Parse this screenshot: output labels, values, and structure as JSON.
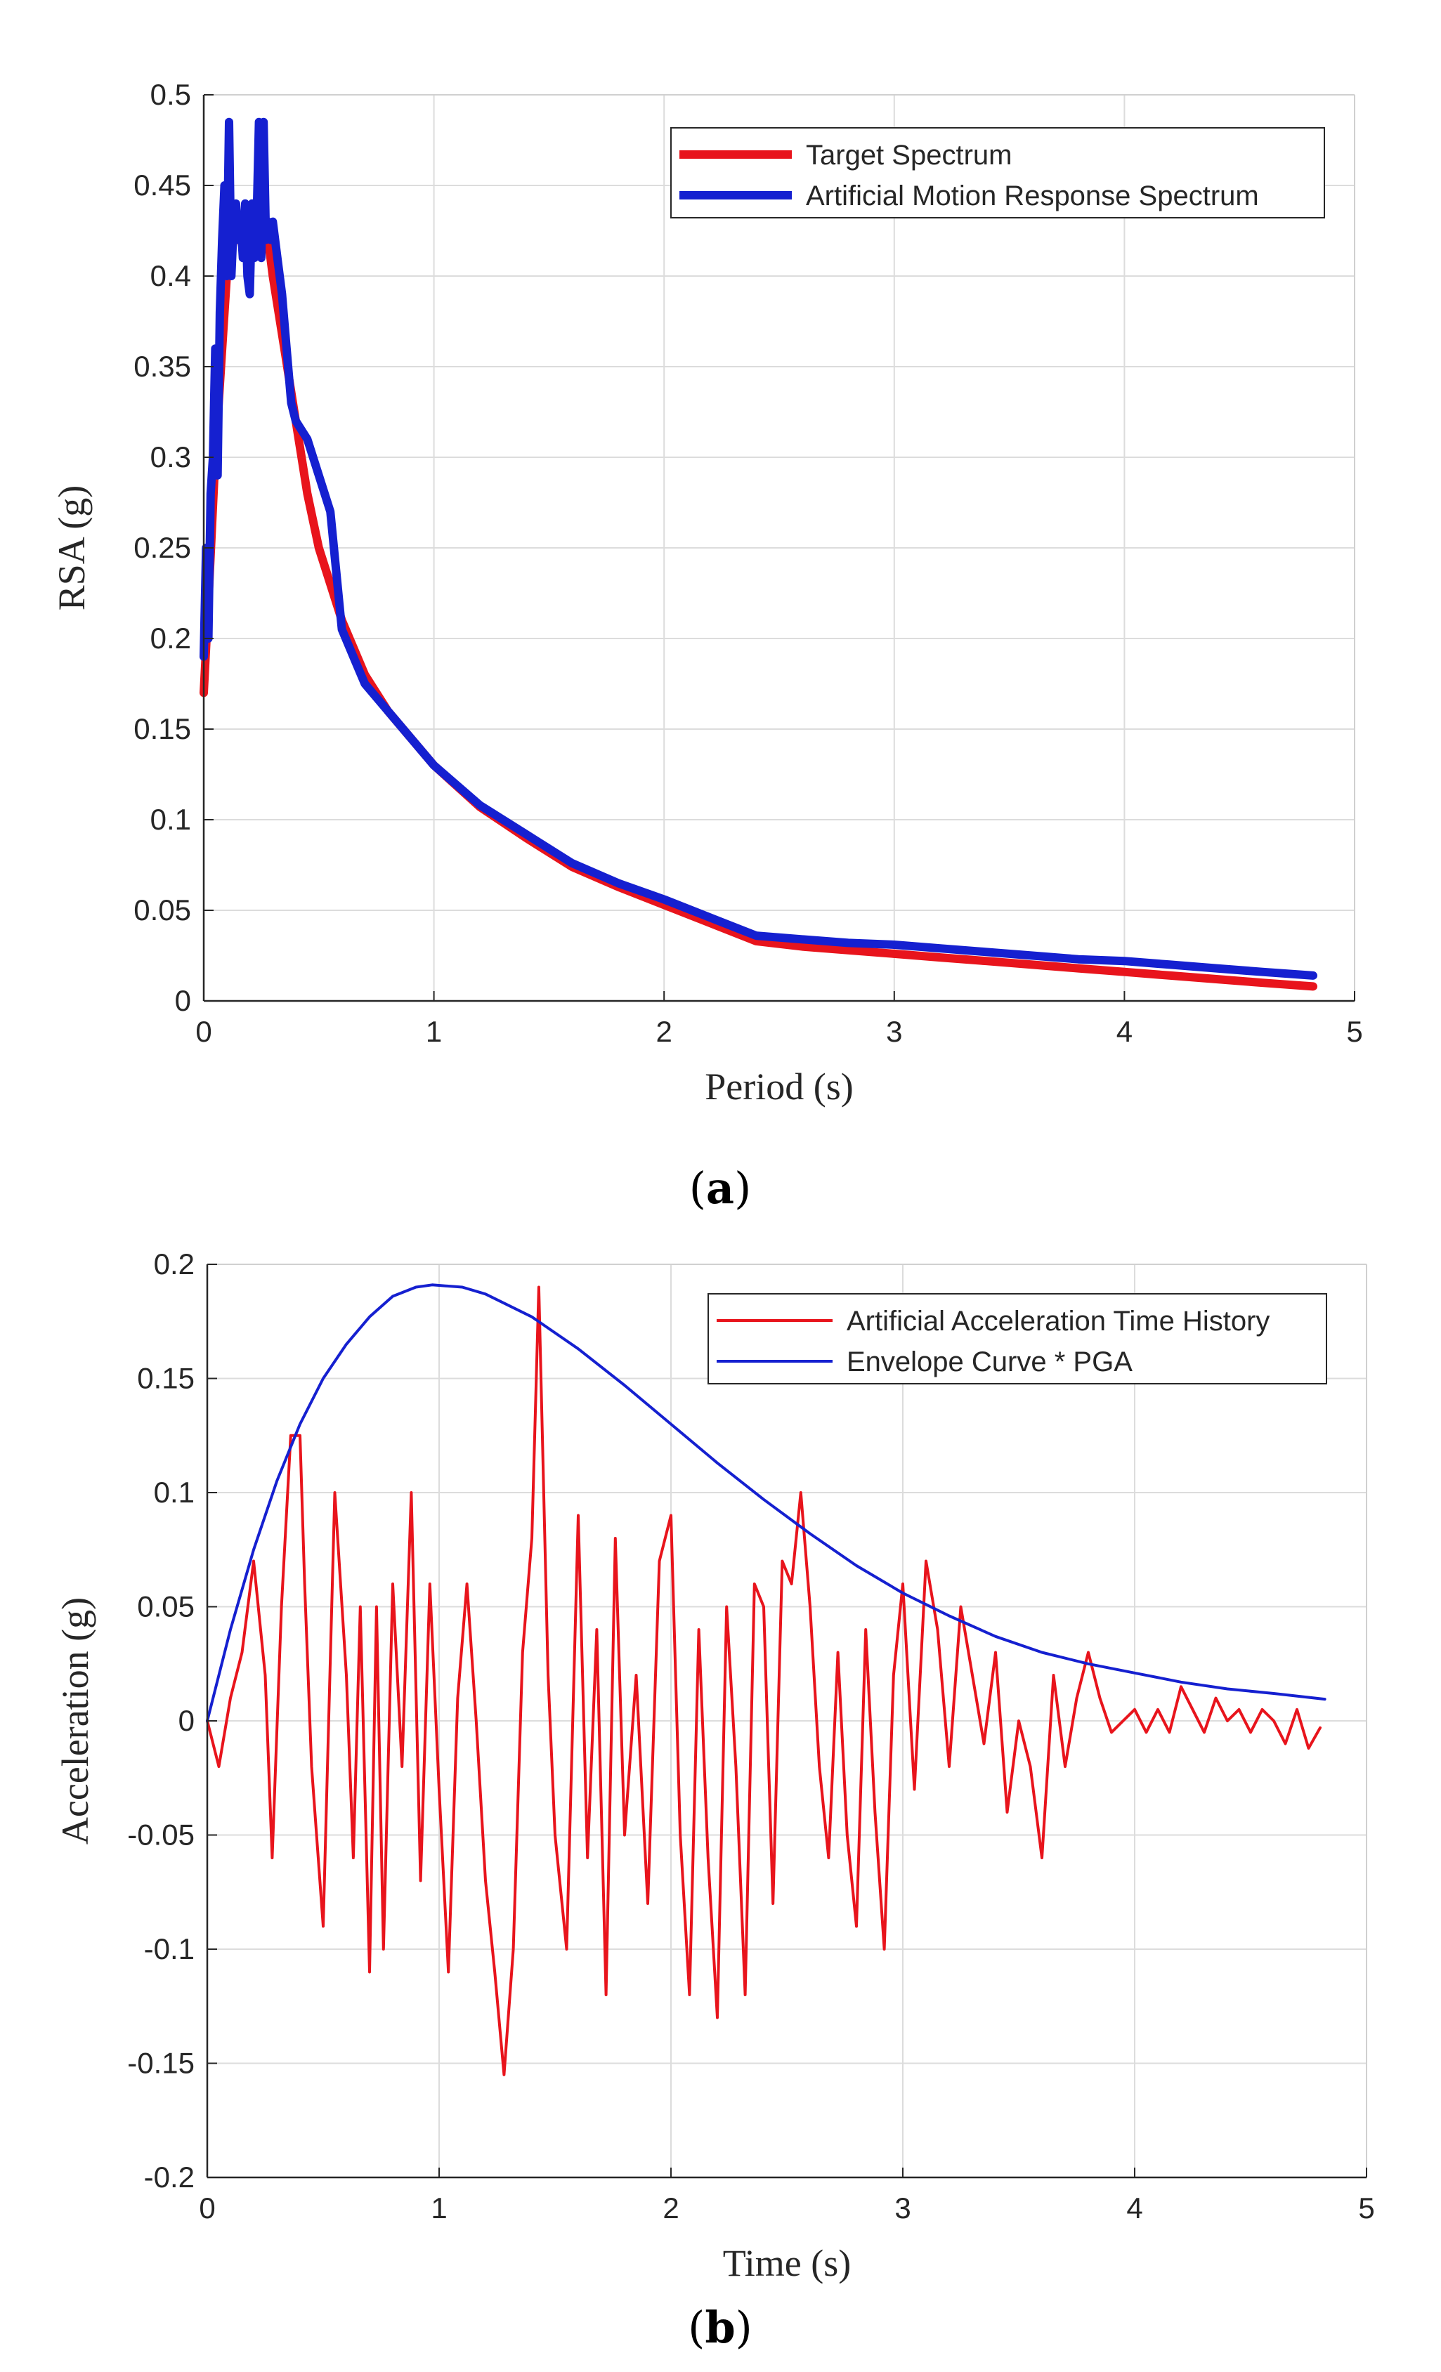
{
  "captions": {
    "a": "a",
    "b": "b",
    "open": "(",
    "close": ")"
  },
  "chart_data": [
    {
      "id": "a",
      "type": "line",
      "title": "",
      "xlabel": "Period (s)",
      "ylabel": "RSA (g)",
      "xlim": [
        0,
        5
      ],
      "ylim": [
        0,
        0.5
      ],
      "xticks": [
        0,
        1,
        2,
        3,
        4,
        5
      ],
      "xtick_labels": [
        "0",
        "1",
        "2",
        "3",
        "4",
        "5"
      ],
      "yticks": [
        0,
        0.05,
        0.1,
        0.15,
        0.2,
        0.25,
        0.3,
        0.35,
        0.4,
        0.45,
        0.5
      ],
      "ytick_labels": [
        "0",
        "0.05",
        "0.1",
        "0.15",
        "0.2",
        "0.25",
        "0.3",
        "0.35",
        "0.4",
        "0.45",
        "0.5"
      ],
      "grid": true,
      "legend": "top-right",
      "series": [
        {
          "name": "Target Spectrum",
          "color": "#e8141c",
          "x": [
            0,
            0.02,
            0.05,
            0.08,
            0.1,
            0.13,
            0.16,
            0.2,
            0.24,
            0.28,
            0.3,
            0.35,
            0.4,
            0.45,
            0.5,
            0.55,
            0.6,
            0.7,
            0.8,
            0.9,
            1.0,
            1.2,
            1.4,
            1.6,
            1.8,
            2.0,
            2.2,
            2.4,
            2.6,
            2.8,
            3.0,
            3.2,
            3.4,
            3.6,
            3.8,
            4.0,
            4.2,
            4.4,
            4.6,
            4.82
          ],
          "y": [
            0.17,
            0.22,
            0.3,
            0.36,
            0.4,
            0.42,
            0.42,
            0.42,
            0.42,
            0.42,
            0.4,
            0.36,
            0.32,
            0.28,
            0.25,
            0.23,
            0.21,
            0.18,
            0.16,
            0.145,
            0.13,
            0.107,
            0.09,
            0.074,
            0.063,
            0.053,
            0.043,
            0.033,
            0.03,
            0.028,
            0.026,
            0.024,
            0.022,
            0.02,
            0.018,
            0.016,
            0.014,
            0.012,
            0.01,
            0.008
          ]
        },
        {
          "name": "Artificial Motion Response Spectrum",
          "color": "#1520d0",
          "x": [
            0,
            0.01,
            0.02,
            0.03,
            0.04,
            0.05,
            0.06,
            0.07,
            0.08,
            0.09,
            0.1,
            0.11,
            0.12,
            0.13,
            0.14,
            0.15,
            0.16,
            0.17,
            0.18,
            0.19,
            0.2,
            0.21,
            0.22,
            0.23,
            0.24,
            0.25,
            0.26,
            0.27,
            0.28,
            0.29,
            0.3,
            0.32,
            0.34,
            0.36,
            0.38,
            0.4,
            0.45,
            0.5,
            0.55,
            0.6,
            0.65,
            0.7,
            0.8,
            0.9,
            1.0,
            1.2,
            1.4,
            1.6,
            1.8,
            2.0,
            2.2,
            2.4,
            2.6,
            2.8,
            3.0,
            3.2,
            3.4,
            3.6,
            3.8,
            4.0,
            4.2,
            4.4,
            4.6,
            4.82
          ],
          "y": [
            0.19,
            0.25,
            0.2,
            0.28,
            0.3,
            0.36,
            0.29,
            0.38,
            0.42,
            0.45,
            0.4,
            0.485,
            0.4,
            0.43,
            0.44,
            0.42,
            0.43,
            0.41,
            0.44,
            0.4,
            0.39,
            0.44,
            0.41,
            0.43,
            0.485,
            0.41,
            0.485,
            0.42,
            0.43,
            0.42,
            0.43,
            0.41,
            0.39,
            0.36,
            0.33,
            0.32,
            0.31,
            0.29,
            0.27,
            0.205,
            0.19,
            0.175,
            0.16,
            0.145,
            0.13,
            0.108,
            0.092,
            0.076,
            0.065,
            0.056,
            0.046,
            0.036,
            0.034,
            0.032,
            0.031,
            0.029,
            0.027,
            0.025,
            0.023,
            0.022,
            0.02,
            0.018,
            0.016,
            0.014
          ]
        }
      ]
    },
    {
      "id": "b",
      "type": "line",
      "title": "",
      "xlabel": "Time (s)",
      "ylabel": "Acceleration (g)",
      "xlim": [
        0,
        5
      ],
      "ylim": [
        -0.2,
        0.2
      ],
      "xticks": [
        0,
        1,
        2,
        3,
        4,
        5
      ],
      "xtick_labels": [
        "0",
        "1",
        "2",
        "3",
        "4",
        "5"
      ],
      "yticks": [
        -0.2,
        -0.15,
        -0.1,
        -0.05,
        0,
        0.05,
        0.1,
        0.15,
        0.2
      ],
      "ytick_labels": [
        "-0.2",
        "-0.15",
        "-0.1",
        "-0.05",
        "0",
        "0.05",
        "0.1",
        "0.15",
        "0.2"
      ],
      "grid": true,
      "legend": "top-right",
      "series": [
        {
          "name": "Artificial Acceleration Time History",
          "color": "#e8141c",
          "x": [
            0,
            0.05,
            0.1,
            0.15,
            0.2,
            0.25,
            0.28,
            0.32,
            0.36,
            0.4,
            0.42,
            0.45,
            0.5,
            0.55,
            0.6,
            0.63,
            0.66,
            0.7,
            0.73,
            0.76,
            0.8,
            0.84,
            0.88,
            0.92,
            0.96,
            1.0,
            1.04,
            1.08,
            1.12,
            1.16,
            1.2,
            1.24,
            1.28,
            1.32,
            1.36,
            1.4,
            1.43,
            1.47,
            1.5,
            1.55,
            1.6,
            1.64,
            1.68,
            1.72,
            1.76,
            1.8,
            1.85,
            1.9,
            1.95,
            2.0,
            2.04,
            2.08,
            2.12,
            2.16,
            2.2,
            2.24,
            2.28,
            2.32,
            2.36,
            2.4,
            2.44,
            2.48,
            2.52,
            2.56,
            2.6,
            2.64,
            2.68,
            2.72,
            2.76,
            2.8,
            2.84,
            2.88,
            2.92,
            2.96,
            3.0,
            3.05,
            3.1,
            3.15,
            3.2,
            3.25,
            3.3,
            3.35,
            3.4,
            3.45,
            3.5,
            3.55,
            3.6,
            3.65,
            3.7,
            3.75,
            3.8,
            3.85,
            3.9,
            3.95,
            4.0,
            4.05,
            4.1,
            4.15,
            4.2,
            4.25,
            4.3,
            4.35,
            4.4,
            4.45,
            4.5,
            4.55,
            4.6,
            4.65,
            4.7,
            4.75,
            4.8
          ],
          "y": [
            0,
            -0.02,
            0.01,
            0.03,
            0.07,
            0.02,
            -0.06,
            0.05,
            0.125,
            0.125,
            0.06,
            -0.02,
            -0.09,
            0.1,
            0.02,
            -0.06,
            0.05,
            -0.11,
            0.05,
            -0.1,
            0.06,
            -0.02,
            0.1,
            -0.07,
            0.06,
            -0.03,
            -0.11,
            0.01,
            0.06,
            0.0,
            -0.07,
            -0.11,
            -0.155,
            -0.1,
            0.03,
            0.08,
            0.19,
            0.02,
            -0.05,
            -0.1,
            0.09,
            -0.06,
            0.04,
            -0.12,
            0.08,
            -0.05,
            0.02,
            -0.08,
            0.07,
            0.09,
            -0.05,
            -0.12,
            0.04,
            -0.06,
            -0.13,
            0.05,
            -0.02,
            -0.12,
            0.06,
            0.05,
            -0.08,
            0.07,
            0.06,
            0.1,
            0.05,
            -0.02,
            -0.06,
            0.03,
            -0.05,
            -0.09,
            0.04,
            -0.04,
            -0.1,
            0.02,
            0.06,
            -0.03,
            0.07,
            0.04,
            -0.02,
            0.05,
            0.02,
            -0.01,
            0.03,
            -0.04,
            0.0,
            -0.02,
            -0.06,
            0.02,
            -0.02,
            0.01,
            0.03,
            0.01,
            -0.005,
            0.0,
            0.005,
            -0.005,
            0.005,
            -0.005,
            0.015,
            0.005,
            -0.005,
            0.01,
            0.0,
            0.005,
            -0.005,
            0.005,
            0.0,
            -0.01,
            0.005,
            -0.012,
            -0.003
          ]
        },
        {
          "name": "Envelope Curve * PGA",
          "color": "#1520d0",
          "x": [
            0,
            0.1,
            0.2,
            0.3,
            0.4,
            0.5,
            0.6,
            0.7,
            0.8,
            0.9,
            0.97,
            1.1,
            1.2,
            1.4,
            1.6,
            1.8,
            2.0,
            2.2,
            2.4,
            2.6,
            2.8,
            3.0,
            3.2,
            3.4,
            3.6,
            3.8,
            4.0,
            4.2,
            4.4,
            4.6,
            4.82
          ],
          "y": [
            0,
            0.04,
            0.075,
            0.105,
            0.13,
            0.15,
            0.165,
            0.177,
            0.186,
            0.19,
            0.191,
            0.19,
            0.187,
            0.177,
            0.163,
            0.147,
            0.13,
            0.113,
            0.097,
            0.082,
            0.068,
            0.056,
            0.046,
            0.037,
            0.03,
            0.025,
            0.021,
            0.017,
            0.014,
            0.012,
            0.0095
          ]
        }
      ]
    }
  ]
}
